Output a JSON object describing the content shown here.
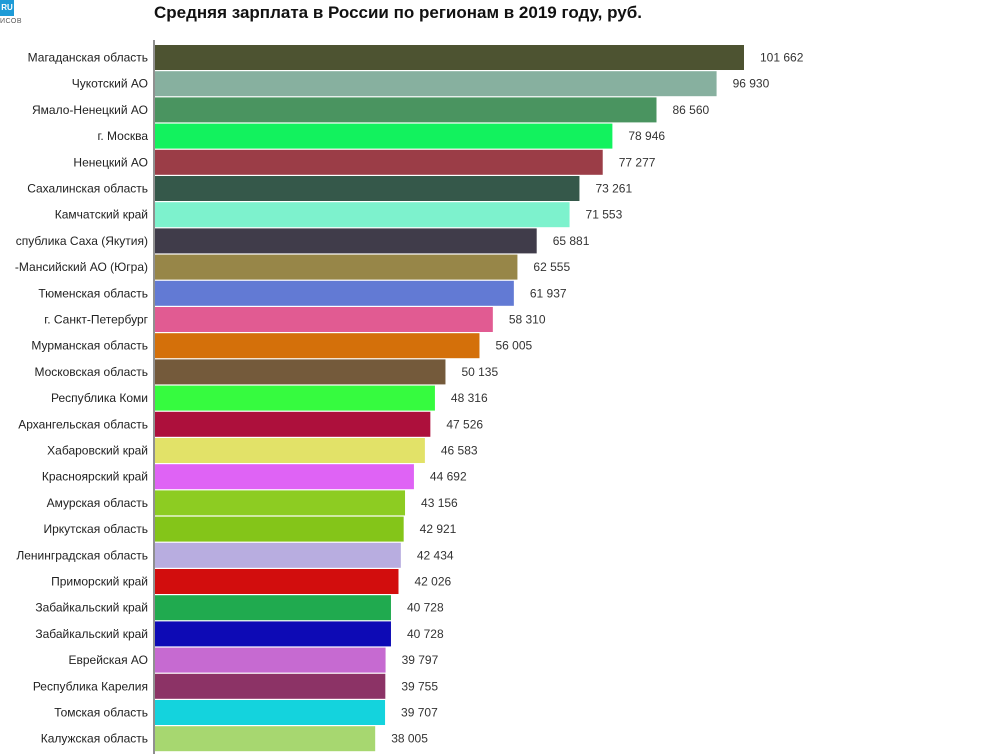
{
  "logo": {
    "mark": "RU",
    "sub": "ИСОВ"
  },
  "chart_data": {
    "type": "bar",
    "orientation": "horizontal",
    "title": "Средняя зарплата в России по регионам в 2019 году, руб.",
    "xlabel": "",
    "ylabel": "",
    "xlim": [
      0,
      101662
    ],
    "grid": false,
    "legend": "none",
    "categories": [
      "Магаданская область",
      "Чукотский АО",
      "Ямало-Ненецкий АО",
      "г. Москва",
      "Ненецкий АО",
      "Сахалинская область",
      "Камчатский край",
      "спублика Саха (Якутия)",
      "-Мансийский АО (Югра)",
      "Тюменская область",
      "г. Санкт-Петербург",
      "Мурманская область",
      "Московская область",
      "Республика Коми",
      "Архангельская область",
      "Хабаровский край",
      "Красноярский край",
      "Амурская область",
      "Иркутская область",
      "Ленинградская область",
      "Приморский край",
      "Забайкальский край",
      "Забайкальский край",
      "Еврейская АО",
      "Республика Карелия",
      "Томская область",
      "Калужская область"
    ],
    "values": [
      101662,
      96930,
      86560,
      78946,
      77277,
      73261,
      71553,
      65881,
      62555,
      61937,
      58310,
      56005,
      50135,
      48316,
      47526,
      46583,
      44692,
      43156,
      42921,
      42434,
      42026,
      40728,
      40728,
      39797,
      39755,
      39707,
      38005
    ],
    "value_labels": [
      "101 662",
      "96 930",
      "86 560",
      "78 946",
      "77 277",
      "73 261",
      "71 553",
      "65 881",
      "62 555",
      "61 937",
      "58 310",
      "56 005",
      "50 135",
      "48 316",
      "47 526",
      "46 583",
      "44 692",
      "43 156",
      "42 921",
      "42 434",
      "42 026",
      "40 728",
      "40 728",
      "39 797",
      "39 755",
      "39 707",
      "38 005"
    ],
    "colors": [
      "#4d5331",
      "#87b09f",
      "#4a9460",
      "#12f25e",
      "#9b3d47",
      "#35584a",
      "#7df2cd",
      "#403c4a",
      "#978648",
      "#627ad4",
      "#e15b92",
      "#d4700a",
      "#745a3b",
      "#36fb3f",
      "#ad103c",
      "#e2e268",
      "#df63f5",
      "#8dcc22",
      "#84c519",
      "#b8ade0",
      "#d20d0d",
      "#20aa4f",
      "#0d0ab5",
      "#c66ad1",
      "#8c3366",
      "#14d3dd",
      "#a7d770"
    ]
  }
}
